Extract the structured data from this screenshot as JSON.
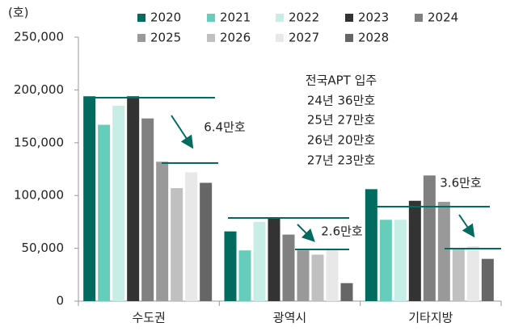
{
  "chart_data": {
    "type": "bar",
    "y_unit": "(호)",
    "categories": [
      "수도권",
      "광역시",
      "기타지방"
    ],
    "series": [
      {
        "name": "2020",
        "color": "#006b5e",
        "values": [
          194000,
          66000,
          106000
        ]
      },
      {
        "name": "2021",
        "color": "#66cdbb",
        "values": [
          167000,
          48000,
          77000
        ]
      },
      {
        "name": "2022",
        "color": "#c6ede6",
        "values": [
          185000,
          75000,
          77000
        ]
      },
      {
        "name": "2023",
        "color": "#333333",
        "values": [
          194000,
          78000,
          95000
        ]
      },
      {
        "name": "2024",
        "color": "#808080",
        "values": [
          173000,
          63000,
          119000
        ]
      },
      {
        "name": "2025",
        "color": "#999999",
        "values": [
          132000,
          48000,
          94000
        ]
      },
      {
        "name": "2026",
        "color": "#c0c0c0",
        "values": [
          107000,
          44000,
          49000
        ]
      },
      {
        "name": "2027",
        "color": "#e8e8e8",
        "values": [
          122000,
          50000,
          52000
        ]
      },
      {
        "name": "2028",
        "color": "#666666",
        "values": [
          112000,
          17000,
          40000
        ]
      }
    ],
    "ylim": [
      0,
      250000
    ],
    "yticks": [
      0,
      {
        "value": 50000,
        "label": "50,000"
      },
      {
        "value": 100000,
        "label": "100,000"
      },
      {
        "value": 150000,
        "label": "150,000"
      },
      {
        "value": 200000,
        "label": "200,000"
      },
      {
        "value": 250000,
        "label": "250,000"
      }
    ],
    "annotations": [
      "전국APT 입주",
      "24년 36만호",
      "25년 27만호",
      "26년 20만호",
      "27년 23만호"
    ],
    "change_labels": [
      "6.4만호",
      "2.6만호",
      "3.6만호"
    ]
  }
}
